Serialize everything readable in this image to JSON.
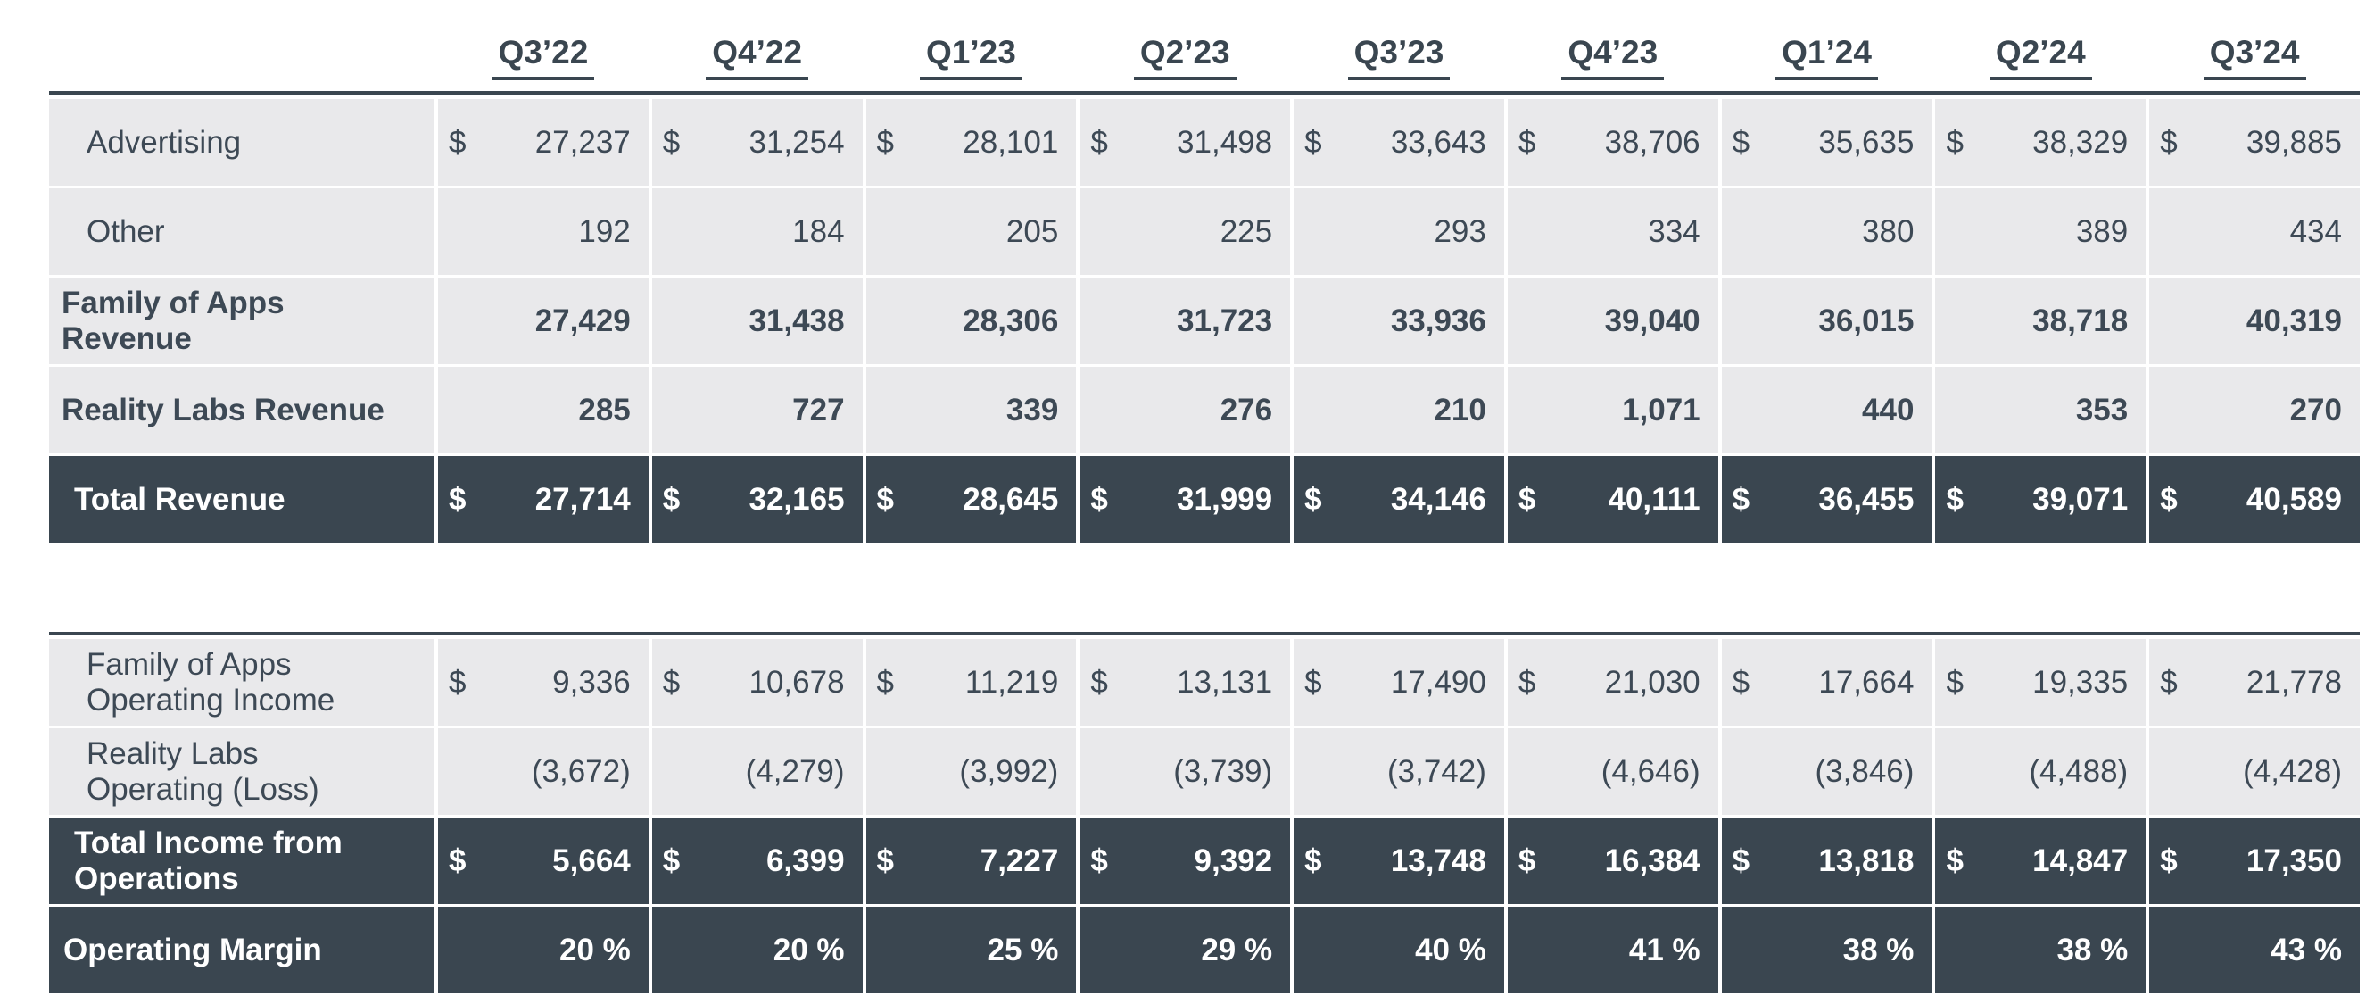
{
  "colors": {
    "dark_row_bg": "#3a4650",
    "light_row_bg": "#e9e9eb",
    "text_color": "#3d4955",
    "dark_row_text": "#ffffff"
  },
  "quarter_headers": [
    "Q3’22",
    "Q4’22",
    "Q1’23",
    "Q2’23",
    "Q3’23",
    "Q4’23",
    "Q1’24",
    "Q2’24",
    "Q3’24"
  ],
  "revenue_table": {
    "rows": [
      {
        "label": "Advertising",
        "variant": "light",
        "bold": false,
        "dollar": true,
        "indent": 42,
        "values": [
          "27,237",
          "31,254",
          "28,101",
          "31,498",
          "33,643",
          "38,706",
          "35,635",
          "38,329",
          "39,885"
        ]
      },
      {
        "label": "Other",
        "variant": "light",
        "bold": false,
        "dollar": false,
        "indent": 42,
        "values": [
          "192",
          "184",
          "205",
          "225",
          "293",
          "334",
          "380",
          "389",
          "434"
        ]
      },
      {
        "label": "Family of Apps\nRevenue",
        "variant": "light",
        "bold": true,
        "dollar": false,
        "indent": 14,
        "values": [
          "27,429",
          "31,438",
          "28,306",
          "31,723",
          "33,936",
          "39,040",
          "36,015",
          "38,718",
          "40,319"
        ]
      },
      {
        "label": "Reality Labs Revenue",
        "variant": "light",
        "bold": true,
        "dollar": false,
        "indent": 14,
        "values": [
          "285",
          "727",
          "339",
          "276",
          "210",
          "1,071",
          "440",
          "353",
          "270"
        ]
      },
      {
        "label": "Total Revenue",
        "variant": "dark",
        "bold": true,
        "dollar": true,
        "indent": 28,
        "values": [
          "27,714",
          "32,165",
          "28,645",
          "31,999",
          "34,146",
          "40,111",
          "36,455",
          "39,071",
          "40,589"
        ]
      }
    ]
  },
  "operating_table": {
    "rows": [
      {
        "label": "Family of Apps\nOperating Income",
        "variant": "light",
        "bold": false,
        "dollar": true,
        "indent": 42,
        "values": [
          "9,336",
          "10,678",
          "11,219",
          "13,131",
          "17,490",
          "21,030",
          "17,664",
          "19,335",
          "21,778"
        ]
      },
      {
        "label": "Reality Labs\nOperating (Loss)",
        "variant": "light",
        "bold": false,
        "dollar": false,
        "indent": 42,
        "values": [
          "(3,672)",
          "(4,279)",
          "(3,992)",
          "(3,739)",
          "(3,742)",
          "(4,646)",
          "(3,846)",
          "(4,488)",
          "(4,428)"
        ]
      },
      {
        "label": "Total Income from\nOperations",
        "variant": "dark",
        "bold": true,
        "dollar": true,
        "indent": 28,
        "values": [
          "5,664",
          "6,399",
          "7,227",
          "9,392",
          "13,748",
          "16,384",
          "13,818",
          "14,847",
          "17,350"
        ]
      },
      {
        "label": "Operating Margin",
        "variant": "dark",
        "bold": true,
        "dollar": false,
        "indent": 16,
        "values": [
          "20 %",
          "20 %",
          "25 %",
          "29 %",
          "40 %",
          "41 %",
          "38 %",
          "38 %",
          "43 %"
        ]
      }
    ]
  },
  "dollar_symbol": "$"
}
